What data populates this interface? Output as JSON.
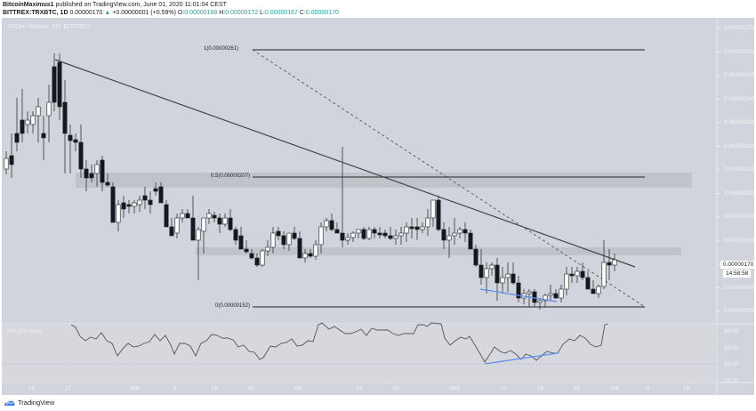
{
  "header": {
    "author": "BitcoinMaximus1",
    "published_text": "published on TradingView.com, June 01, 2020 11:01:04 CEST",
    "symbol_line": "BITTREX:TRXBTC, 1D",
    "last": "0.00000170",
    "change": "+0.00000001 (+0.59%)",
    "o_label": "O:",
    "o": "0.00000168",
    "h_label": "H:",
    "h": "0.00000172",
    "l_label": "L:",
    "l": "0.00000167",
    "c_label": "C:",
    "c": "0.00000170"
  },
  "chart": {
    "title": "TRON / Bitcoin, 1D, BITTREX",
    "price_axis": [
      "0.00000270",
      "0.00000260",
      "0.00000250",
      "0.00000240",
      "0.00000230",
      "0.00000220",
      "0.00000210",
      "0.00000200",
      "0.00000190",
      "0.00000180",
      "0.00000170",
      "0.00000160",
      "0.00000150"
    ],
    "current_price": "0.00000170",
    "countdown": "14:58:58",
    "fib_levels": [
      {
        "label": "1(0.00000261)"
      },
      {
        "label": "0.5(0.00000207)"
      },
      {
        "label": "0(0.00000152)"
      }
    ],
    "time_axis": [
      "10",
      "17",
      "Mar",
      "9",
      "16",
      "23",
      "Apr",
      "13",
      "20",
      "May",
      "11",
      "18",
      "25",
      "Jun",
      "8",
      "15"
    ],
    "colors": {
      "background": "#d1d4dc",
      "up_candle": "#ffffff",
      "down_candle": "#131722",
      "divergence_line": "#5b8def",
      "trendline": "#444444"
    }
  },
  "rsi": {
    "label": "RSI (14, close)",
    "axis": [
      "50.00",
      "40.00",
      "30.00",
      "20.00"
    ]
  },
  "footer": {
    "brand": "TradingView"
  }
}
